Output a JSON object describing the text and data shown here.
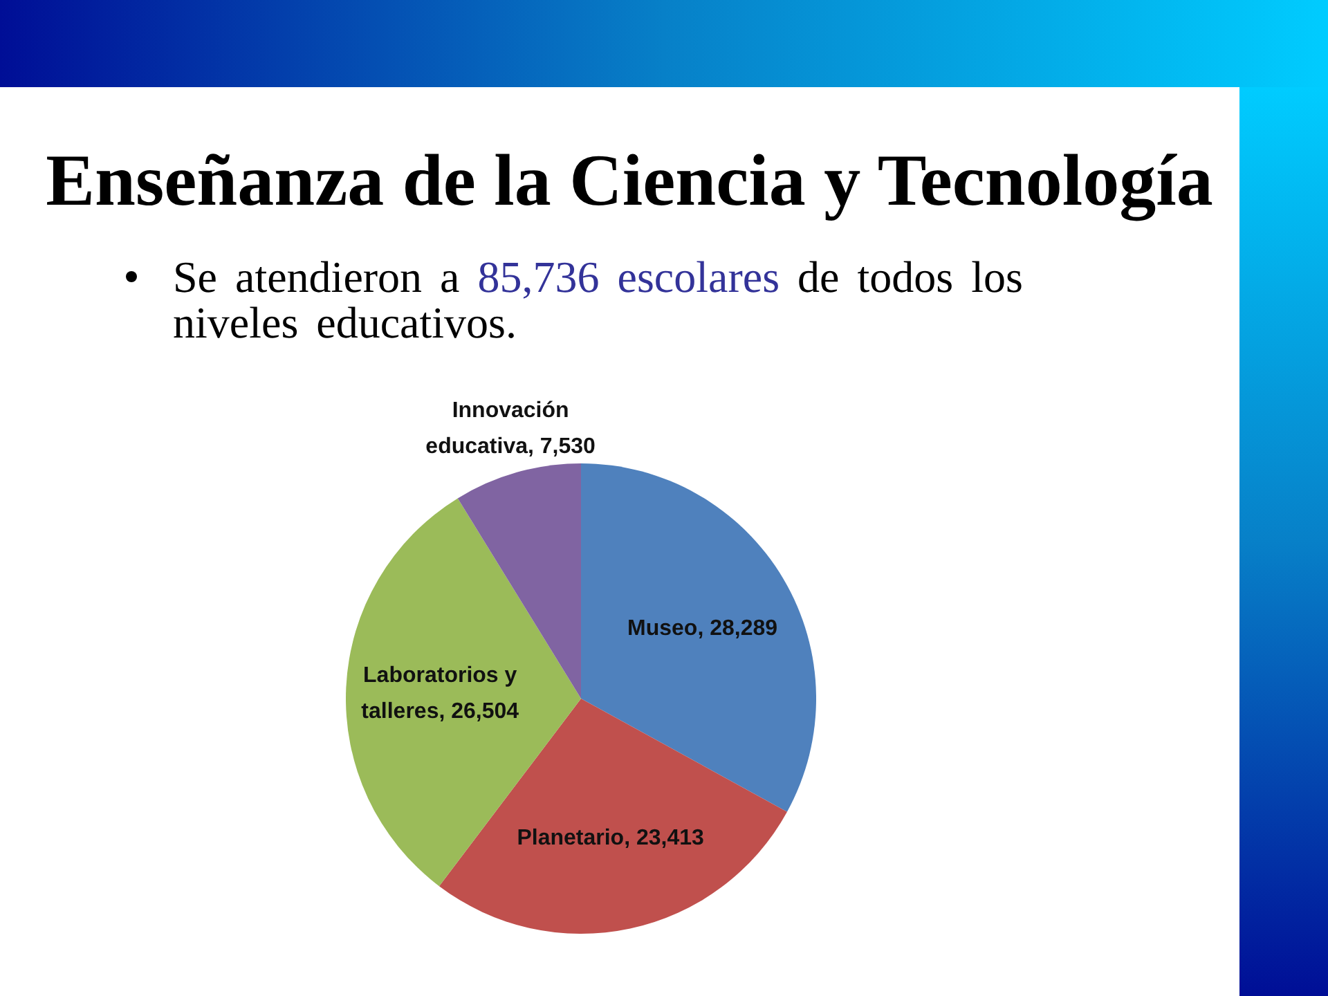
{
  "chart_data": {
    "type": "pie",
    "title": "Enseñanza de la Ciencia y Tecnología",
    "subtitle": "Se atendieron a 85,736 escolares de todos los niveles educativos.",
    "categories": [
      "Museo",
      "Planetario",
      "Laboratorios y talleres",
      "Innovación educativa"
    ],
    "values": [
      28289,
      23413,
      26504,
      7530
    ],
    "value_labels": [
      "28,289",
      "23,413",
      "26,504",
      "7,530"
    ],
    "colors": [
      "#4f81bd",
      "#c0504d",
      "#9bbb59",
      "#8064a2"
    ]
  }
}
